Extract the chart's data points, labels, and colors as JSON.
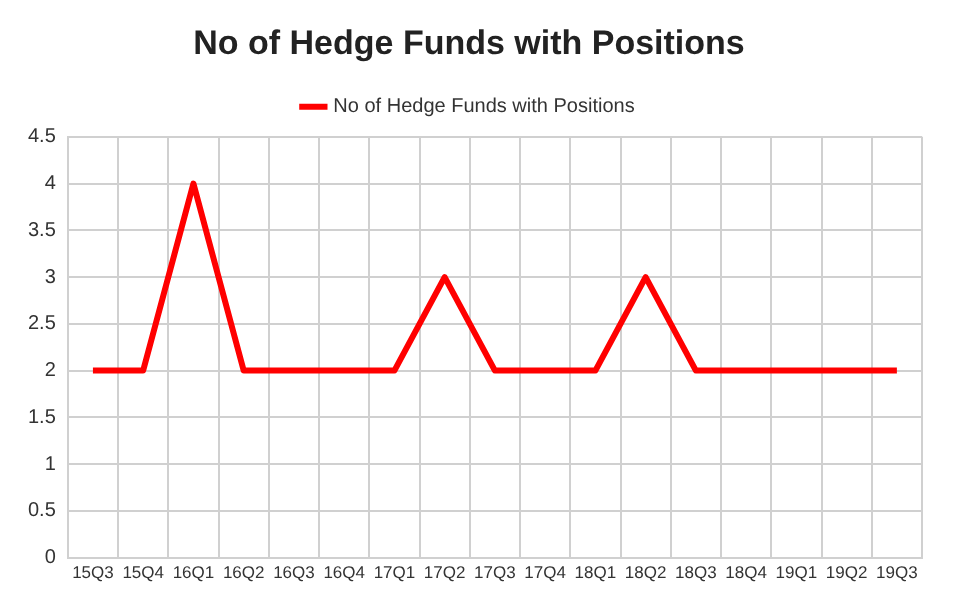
{
  "chart_data": {
    "type": "line",
    "title": "No of Hedge Funds with Positions",
    "categories": [
      "15Q3",
      "15Q4",
      "16Q1",
      "16Q2",
      "16Q3",
      "16Q4",
      "17Q1",
      "17Q2",
      "17Q3",
      "17Q4",
      "18Q1",
      "18Q2",
      "18Q3",
      "18Q4",
      "19Q1",
      "19Q2",
      "19Q3"
    ],
    "series": [
      {
        "name": "No of Hedge Funds with Positions",
        "color": "#ff0000",
        "values": [
          2,
          2,
          4,
          2,
          2,
          2,
          2,
          3,
          2,
          2,
          2,
          3,
          2,
          2,
          2,
          2,
          2
        ]
      }
    ],
    "ylim": [
      0,
      4.5
    ],
    "yticks": [
      0,
      0.5,
      1,
      1.5,
      2,
      2.5,
      3,
      3.5,
      4,
      4.5
    ],
    "grid": true,
    "legend": "top",
    "marker": "none",
    "line_style": "solid"
  }
}
